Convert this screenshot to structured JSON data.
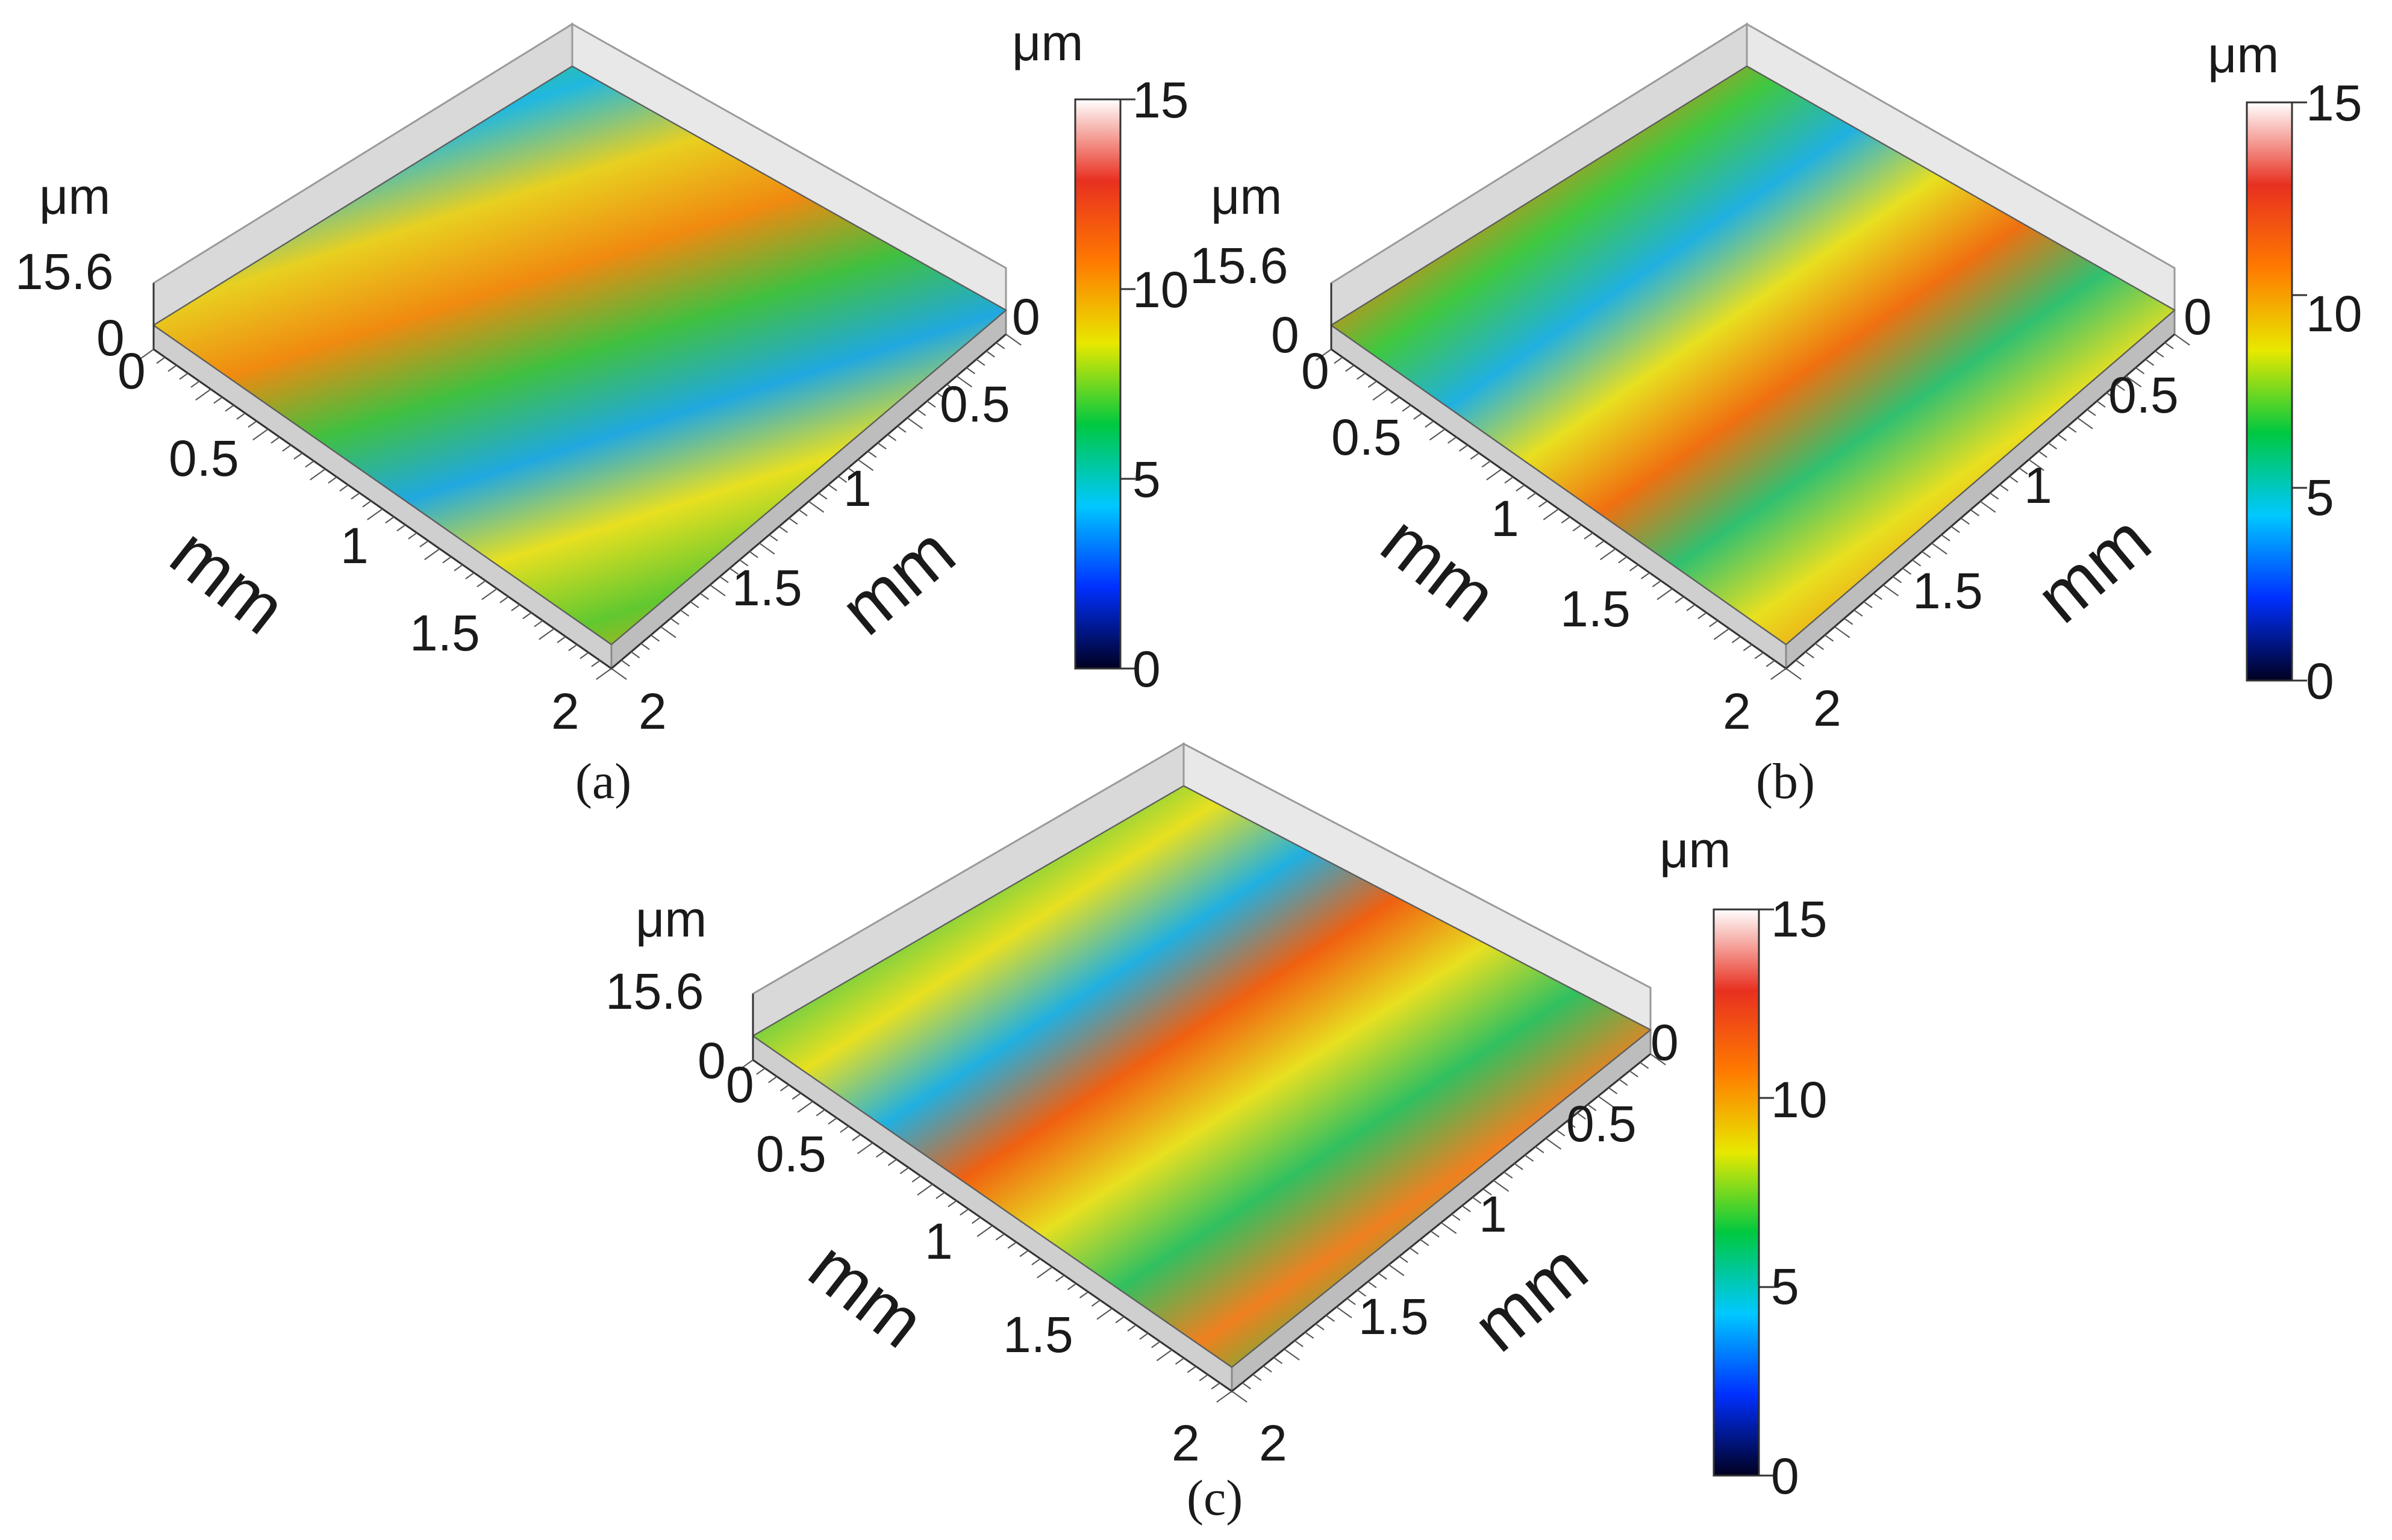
{
  "figure": {
    "panels": [
      {
        "id": "a",
        "caption": "(a)",
        "z_unit": "μm",
        "z_max_label": "15.6",
        "z_min_label": "0",
        "x_unit": "mm",
        "y_unit": "mm",
        "x_ticks": [
          "0",
          "0.5",
          "1",
          "1.5",
          "2"
        ],
        "y_ticks": [
          "0",
          "0.5",
          "1",
          "1.5",
          "2"
        ],
        "colorbar": {
          "unit": "μm",
          "ticks": [
            "0",
            "5",
            "10",
            "15"
          ]
        },
        "texture": "isotropic"
      },
      {
        "id": "b",
        "caption": "(b)",
        "z_unit": "μm",
        "z_max_label": "15.6",
        "z_min_label": "0",
        "x_unit": "mm",
        "y_unit": "mm",
        "x_ticks": [
          "0",
          "0.5",
          "1",
          "1.5",
          "2"
        ],
        "y_ticks": [
          "0",
          "0.5",
          "1",
          "1.5",
          "2"
        ],
        "colorbar": {
          "unit": "μm",
          "ticks": [
            "0",
            "5",
            "10",
            "15"
          ]
        },
        "texture": "striated"
      },
      {
        "id": "c",
        "caption": "(c)",
        "z_unit": "μm",
        "z_max_label": "15.6",
        "z_min_label": "0",
        "x_unit": "mm",
        "y_unit": "mm",
        "x_ticks": [
          "0",
          "0.5",
          "1",
          "1.5",
          "2"
        ],
        "y_ticks": [
          "0",
          "0.5",
          "1",
          "1.5",
          "2"
        ],
        "colorbar": {
          "unit": "μm",
          "ticks": [
            "0",
            "5",
            "10",
            "15"
          ]
        },
        "texture": "diagonal-grooves"
      }
    ]
  },
  "chart_data": [
    {
      "type": "heatmap",
      "panel": "a",
      "x_label": "mm",
      "y_label": "mm",
      "z_label": "μm",
      "xlim": [
        0,
        2
      ],
      "ylim": [
        0,
        2
      ],
      "zlim": [
        0,
        15.6
      ],
      "color_scale": {
        "min": 0,
        "max": 15,
        "ticks": [
          0,
          5,
          10,
          15
        ]
      },
      "colormap": [
        "#000020",
        "#0030ff",
        "#00c8ff",
        "#00c840",
        "#e8e800",
        "#ff7a00",
        "#e83020",
        "#ffffff"
      ]
    },
    {
      "type": "heatmap",
      "panel": "b",
      "x_label": "mm",
      "y_label": "mm",
      "z_label": "μm",
      "xlim": [
        0,
        2
      ],
      "ylim": [
        0,
        2
      ],
      "zlim": [
        0,
        15.6
      ],
      "color_scale": {
        "min": 0,
        "max": 15,
        "ticks": [
          0,
          5,
          10,
          15
        ]
      },
      "colormap": [
        "#000020",
        "#0030ff",
        "#00c8ff",
        "#00c840",
        "#e8e800",
        "#ff7a00",
        "#e83020",
        "#ffffff"
      ]
    },
    {
      "type": "heatmap",
      "panel": "c",
      "x_label": "mm",
      "y_label": "mm",
      "z_label": "μm",
      "xlim": [
        0,
        2
      ],
      "ylim": [
        0,
        2
      ],
      "zlim": [
        0,
        15.6
      ],
      "color_scale": {
        "min": 0,
        "max": 15,
        "ticks": [
          0,
          5,
          10,
          15
        ]
      },
      "colormap": [
        "#000020",
        "#0030ff",
        "#00c8ff",
        "#00c840",
        "#e8e800",
        "#ff7a00",
        "#e83020",
        "#ffffff"
      ]
    }
  ]
}
